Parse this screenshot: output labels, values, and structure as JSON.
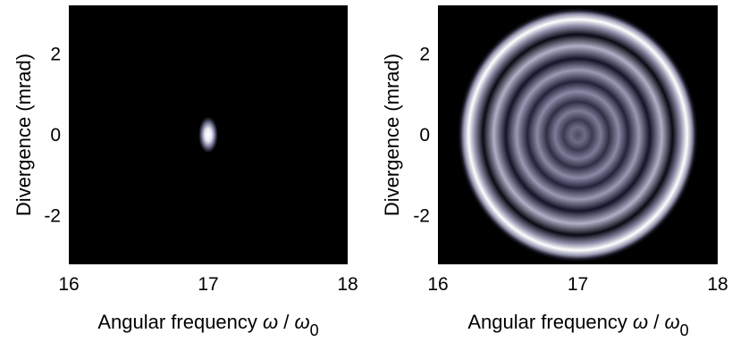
{
  "chart_data": [
    {
      "type": "heatmap",
      "panel": "left",
      "xlabel": {
        "main": "Angular frequency ",
        "omega": "ω",
        "slash": " / ",
        "omega0": "ω",
        "sub": "0"
      },
      "ylabel": "Divergence (mrad)",
      "xlim": [
        16,
        18
      ],
      "ylim": [
        -3.2,
        3.2
      ],
      "xticks": [
        "16",
        "17",
        "18"
      ],
      "xtick_values": [
        16,
        17,
        18
      ],
      "yticks": [
        "2",
        "0",
        "-2"
      ],
      "ytick_values": [
        2,
        0,
        -2
      ],
      "pattern": {
        "shape": "spot",
        "center_x": 17.0,
        "center_y": 0.0,
        "spot_radius_x": 0.07,
        "spot_radius_y": 0.45
      },
      "colormap": [
        "#000000",
        "#1b1b2a",
        "#5a5a78",
        "#a8a8c0",
        "#ffffff"
      ],
      "background": "#000000"
    },
    {
      "type": "heatmap",
      "panel": "right",
      "xlabel": {
        "main": "Angular frequency ",
        "omega": "ω",
        "slash": " / ",
        "omega0": "ω",
        "sub": "0"
      },
      "ylabel": "Divergence (mrad)",
      "xlim": [
        16,
        18
      ],
      "ylim": [
        -3.2,
        3.2
      ],
      "xticks": [
        "16",
        "17",
        "18"
      ],
      "xtick_values": [
        16,
        17,
        18
      ],
      "yticks": [
        "2",
        "0",
        "-2"
      ],
      "ytick_values": [
        2,
        0,
        -2
      ],
      "pattern": {
        "shape": "concentric-rings",
        "center_x": 17.0,
        "center_y": 0.0,
        "outer_ring_radius_x": 0.78,
        "outer_ring_radius_y": 2.85,
        "ring_count": 6
      },
      "colormap": [
        "#000000",
        "#1b1b2a",
        "#5a5a78",
        "#a8a8c0",
        "#ffffff"
      ],
      "background": "#000000"
    }
  ]
}
